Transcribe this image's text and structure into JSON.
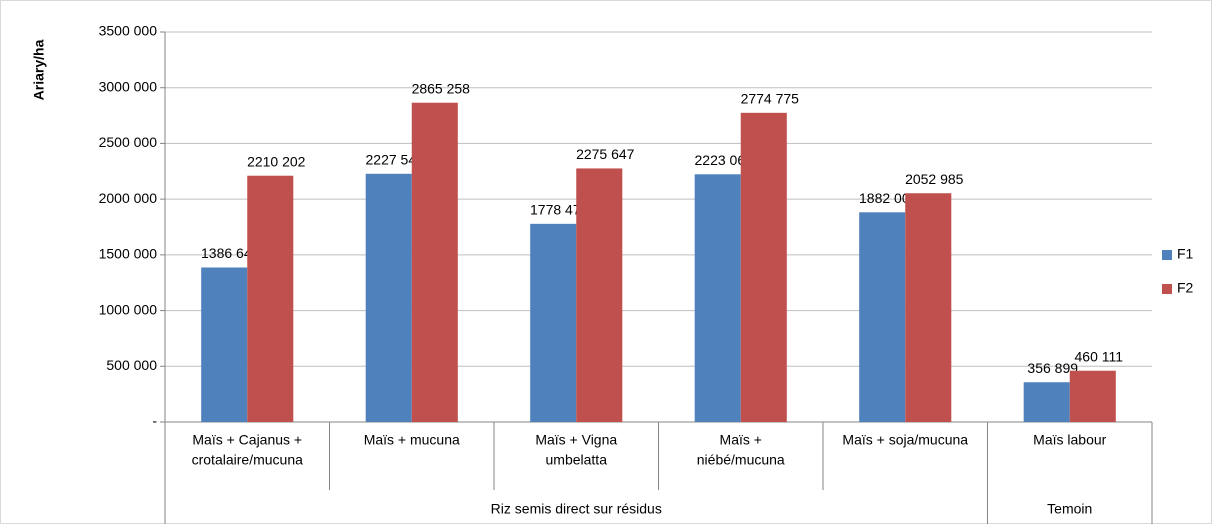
{
  "chart_data": {
    "type": "bar",
    "y_label": "Ariary/ha",
    "groups": [
      {
        "name": "Riz semis direct sur résidus",
        "categories": [
          [
            "Maïs + Cajanus +",
            "crotalaire/mucuna"
          ],
          [
            "Maïs + mucuna"
          ],
          [
            "Maïs + Vigna",
            "umbelatta"
          ],
          [
            "Maïs +",
            "niébé/mucuna"
          ],
          [
            "Maïs + soja/mucuna"
          ]
        ]
      },
      {
        "name": "Temoin",
        "categories": [
          [
            "Maïs labour"
          ]
        ]
      }
    ],
    "series": [
      {
        "name": "F1",
        "color": "#4f81bd",
        "values": [
          1386644,
          2227540,
          1778478,
          2223068,
          1882003,
          356899
        ],
        "value_labels": [
          "1386 644",
          "2227 540",
          "1778 478",
          "2223 068",
          "1882 003",
          "356 899"
        ]
      },
      {
        "name": "F2",
        "color": "#c0504d",
        "values": [
          2210202,
          2865258,
          2275647,
          2774775,
          2052985,
          460111
        ],
        "value_labels": [
          "2210 202",
          "2865 258",
          "2275 647",
          "2774 775",
          "2052 985",
          "460 111"
        ]
      }
    ],
    "ylim": [
      0,
      3500000
    ],
    "yticks": [
      {
        "value": 0,
        "label": "-"
      },
      {
        "value": 500000,
        "label": "500 000"
      },
      {
        "value": 1000000,
        "label": "1000 000"
      },
      {
        "value": 1500000,
        "label": "1500 000"
      },
      {
        "value": 2000000,
        "label": "2000 000"
      },
      {
        "value": 2500000,
        "label": "2500 000"
      },
      {
        "value": 3000000,
        "label": "3000 000"
      },
      {
        "value": 3500000,
        "label": "3500 000"
      }
    ],
    "grid": true,
    "legend": "right"
  }
}
